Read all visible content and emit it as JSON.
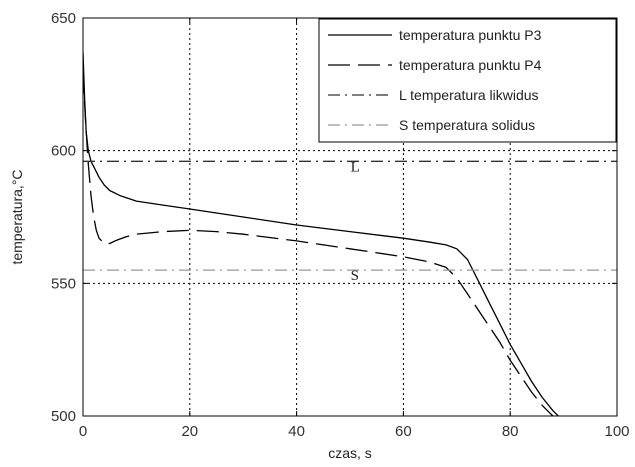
{
  "chart_data": {
    "type": "line",
    "xlabel": "czas, s",
    "ylabel": "temperatura,°C",
    "xlim": [
      0,
      100
    ],
    "ylim": [
      500,
      650
    ],
    "xticks": [
      0,
      20,
      40,
      60,
      80,
      100
    ],
    "yticks": [
      500,
      550,
      600,
      650
    ],
    "grid": "dotted",
    "legend": "top-right",
    "series": [
      {
        "name": "temperatura punktu P3",
        "style": "solid",
        "color": "#000000",
        "x": [
          0,
          0.3,
          0.6,
          1,
          1.5,
          2,
          3,
          4,
          5,
          7,
          10,
          15,
          20,
          30,
          40,
          50,
          60,
          65,
          68,
          70,
          72,
          74,
          76,
          78,
          80,
          82,
          84,
          86,
          88,
          89
        ],
        "y": [
          637,
          620,
          607,
          600,
          596,
          594,
          590,
          587,
          585,
          583,
          581,
          579.5,
          578,
          575,
          572,
          569.5,
          567,
          565.5,
          564.5,
          563,
          559,
          551,
          543,
          535,
          527,
          520,
          513,
          507,
          502,
          500
        ]
      },
      {
        "name": "temperatura punktu P4",
        "style": "dashed",
        "color": "#000000",
        "x": [
          0,
          0.5,
          1,
          1.5,
          2,
          2.5,
          3,
          4,
          5,
          6,
          8,
          10,
          15,
          20,
          25,
          30,
          40,
          50,
          60,
          65,
          68,
          70,
          72,
          74,
          76,
          78,
          80,
          82,
          84,
          86,
          88,
          90
        ],
        "y": [
          630,
          610,
          595,
          583,
          575,
          570,
          567,
          565,
          565,
          566,
          567.5,
          568.5,
          569.5,
          570,
          569.5,
          568.5,
          566,
          563,
          560,
          558,
          556,
          552,
          546,
          540,
          534,
          528,
          521,
          515,
          509,
          504,
          500,
          497
        ]
      },
      {
        "name": "L  temperatura likwidus",
        "style": "dashdot",
        "color": "#333333",
        "x": [
          0,
          100
        ],
        "y": [
          596,
          596
        ]
      },
      {
        "name": "S  temperatura solidus",
        "style": "dashdot",
        "color": "#999999",
        "x": [
          0,
          100
        ],
        "y": [
          555,
          555
        ]
      }
    ],
    "annotations": [
      {
        "text": "L",
        "x": 49,
        "y": 596
      },
      {
        "text": "S",
        "x": 49,
        "y": 555
      }
    ]
  }
}
